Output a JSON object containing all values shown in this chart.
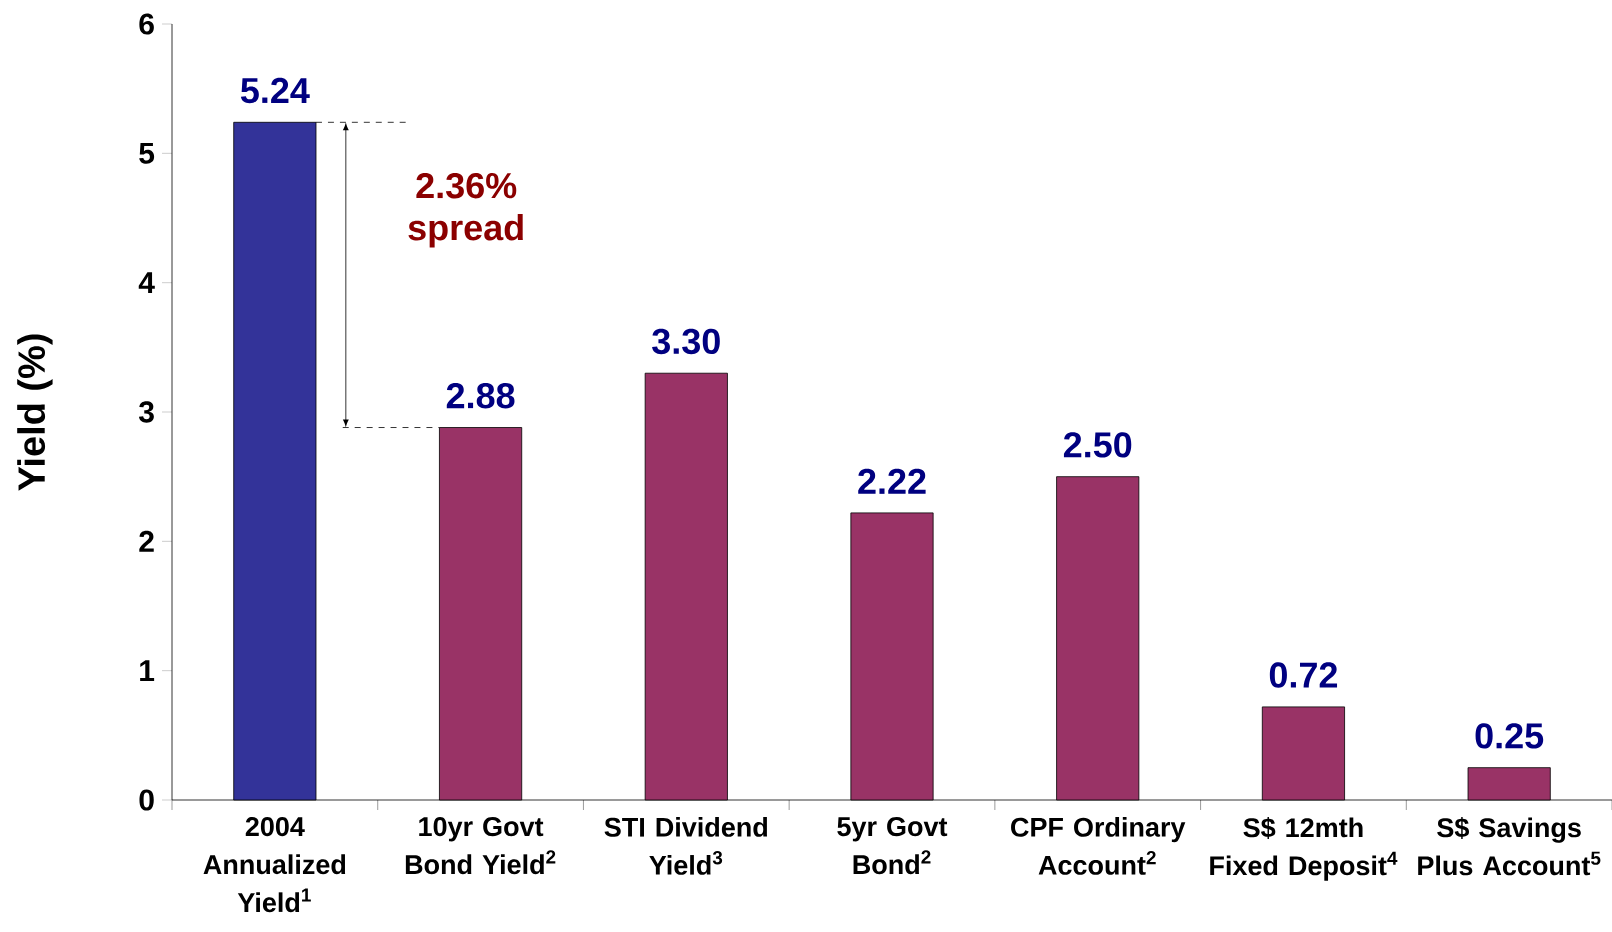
{
  "chart_data": {
    "type": "bar",
    "ylabel": "Yield (%)",
    "categories": [
      "2004 Annualized Yield$^{1}$",
      "10yr Govt Bond Yield$^{2}$",
      "STI Dividend Yield$^{3}$",
      "5yr Govt Bond$^{2}$",
      "CPF Ordinary Account$^{2}$",
      "S$ 12mth Fixed Deposit$^{4}$",
      "S$ Savings Plus Account$^{5}$"
    ],
    "values": [
      5.24,
      2.88,
      3.3,
      2.22,
      2.5,
      0.72,
      0.25
    ],
    "value_labels": [
      "5.24",
      "2.88",
      "3.30",
      "2.22",
      "2.50",
      "0.72",
      "0.25"
    ],
    "colors": [
      "#333399",
      "#993366",
      "#993366",
      "#993366",
      "#993366",
      "#993366",
      "#993366"
    ],
    "ylim": [
      0,
      6
    ],
    "yticks": [
      0,
      1,
      2,
      3,
      4,
      5,
      6
    ],
    "annotations": [
      "2.36% spread"
    ]
  }
}
